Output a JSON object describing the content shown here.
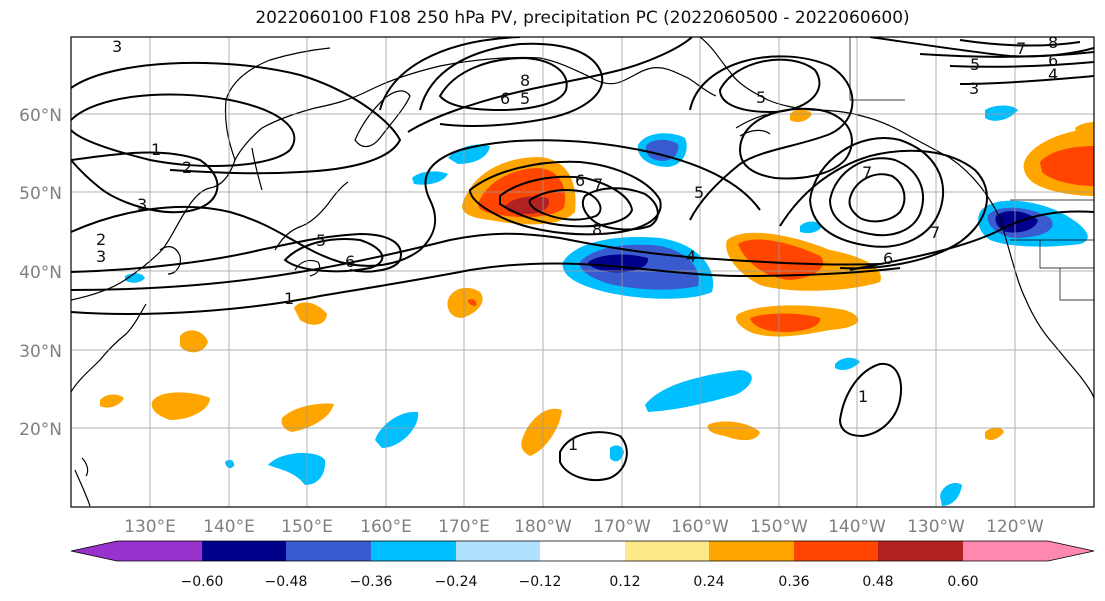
{
  "title": "2022060100 F108 250 hPa PV, precipitation PC (2022060500 - 2022060600)",
  "map": {
    "lon_labels": [
      "130°E",
      "140°E",
      "150°E",
      "160°E",
      "170°E",
      "180°W",
      "170°W",
      "160°W",
      "150°W",
      "140°W",
      "130°W",
      "120°W"
    ],
    "lat_labels": [
      "60°N",
      "50°N",
      "40°N",
      "30°N",
      "20°N"
    ],
    "contour_labels": [
      "3",
      "1",
      "2",
      "3",
      "2",
      "3",
      "5",
      "6",
      "1",
      "8",
      "6",
      "5",
      "5",
      "6",
      "7",
      "8",
      "4",
      "5",
      "7",
      "7",
      "6",
      "1",
      "1",
      "3",
      "4",
      "5",
      "6",
      "7",
      "8"
    ]
  },
  "colorbar": {
    "colors": [
      "#9932cc",
      "#00008b",
      "#3a5bcf",
      "#00bfff",
      "#b0e2ff",
      "#ffffff",
      "#fde88a",
      "#ffa500",
      "#ff4500",
      "#b22222",
      "#ff88b0"
    ],
    "tick_labels": [
      "−0.60",
      "−0.48",
      "−0.36",
      "−0.24",
      "−0.12",
      "0.12",
      "0.24",
      "0.36",
      "0.48",
      "0.60"
    ]
  }
}
